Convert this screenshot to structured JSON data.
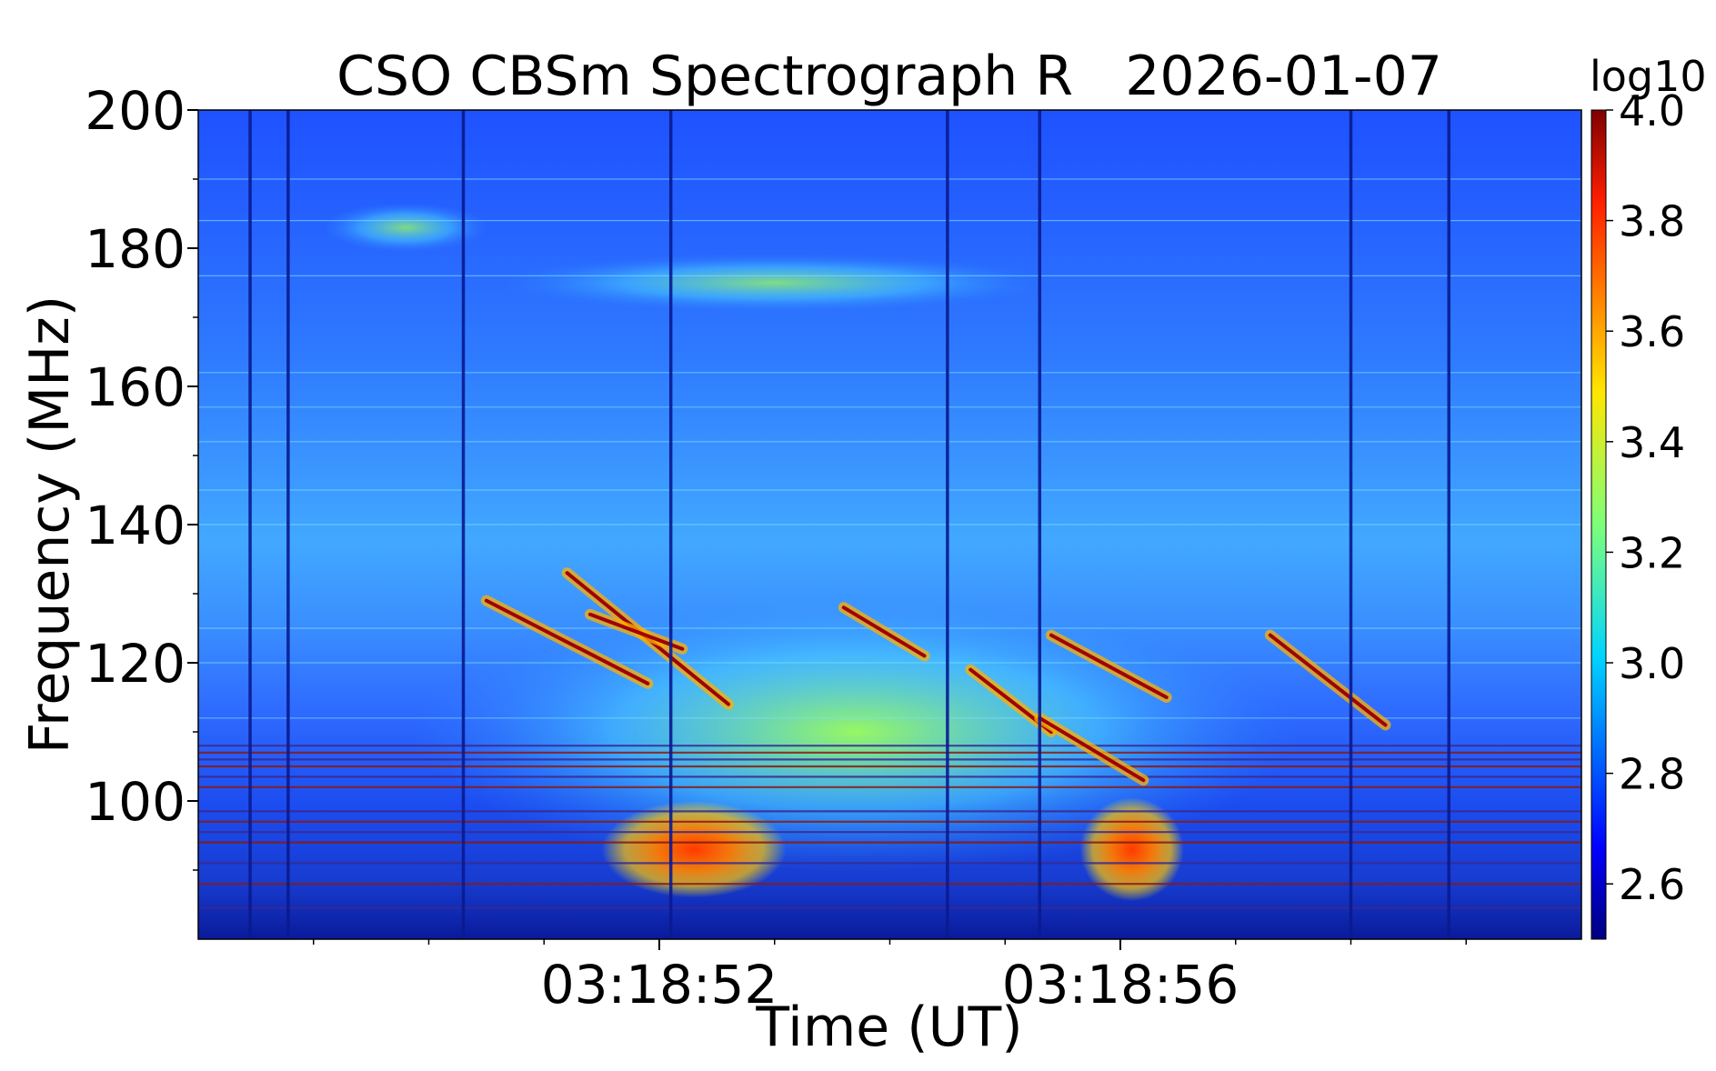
{
  "chart_data": {
    "type": "heatmap",
    "title": "CSO CBSm Spectrograph R   2026-01-07",
    "xlabel": "Time (UT)",
    "ylabel": "Frequency (MHz)",
    "x_ticks": [
      {
        "label": "03:18:52",
        "t": 4.0
      },
      {
        "label": "03:18:56",
        "t": 8.0
      }
    ],
    "x_minor_ticks": [
      1,
      2,
      3,
      4,
      5,
      6,
      7,
      8,
      9,
      10,
      11
    ],
    "xlim": [
      0.0,
      12.0
    ],
    "y_ticks": [
      100,
      120,
      140,
      160,
      180,
      200
    ],
    "y_minor_ticks": [
      90,
      110,
      130,
      150,
      170,
      190
    ],
    "ylim": [
      80,
      200
    ],
    "colorbar": {
      "label": "log10",
      "range": [
        2.5,
        4.0
      ],
      "ticks": [
        "2.6",
        "2.8",
        "3.0",
        "3.2",
        "3.4",
        "3.6",
        "3.8",
        "4.0"
      ],
      "colormap": "jet"
    },
    "grid": false,
    "features": {
      "burst_tracks": [
        {
          "t_start": 3.2,
          "f_start": 133,
          "t_end": 4.6,
          "f_end": 114
        },
        {
          "t_start": 2.5,
          "f_start": 129,
          "t_end": 3.9,
          "f_end": 117
        },
        {
          "t_start": 3.4,
          "f_start": 127,
          "t_end": 4.2,
          "f_end": 122
        },
        {
          "t_start": 5.6,
          "f_start": 128,
          "t_end": 6.3,
          "f_end": 121
        },
        {
          "t_start": 6.7,
          "f_start": 119,
          "t_end": 7.4,
          "f_end": 110
        },
        {
          "t_start": 7.4,
          "f_start": 124,
          "t_end": 8.4,
          "f_end": 115
        },
        {
          "t_start": 7.3,
          "f_start": 112,
          "t_end": 8.2,
          "f_end": 103
        },
        {
          "t_start": 9.3,
          "f_start": 124,
          "t_end": 10.3,
          "f_end": 111
        }
      ],
      "continuum_blobs": [
        {
          "t": 4.3,
          "f": 93,
          "dt": 1.6,
          "df": 14,
          "level": 3.9
        },
        {
          "t": 8.1,
          "f": 93,
          "dt": 0.9,
          "df": 15,
          "level": 3.85
        }
      ],
      "dark_time_stripes": [
        0.45,
        0.78,
        2.3,
        4.1,
        6.5,
        7.3,
        10.0,
        10.85
      ],
      "rfi_frequency_lines": [
        84.5,
        88,
        91,
        94,
        95.5,
        97,
        98.5,
        102,
        103.5,
        105,
        106,
        107,
        108,
        112,
        120,
        125,
        140,
        145,
        152,
        157,
        162,
        176,
        184,
        190
      ]
    }
  }
}
